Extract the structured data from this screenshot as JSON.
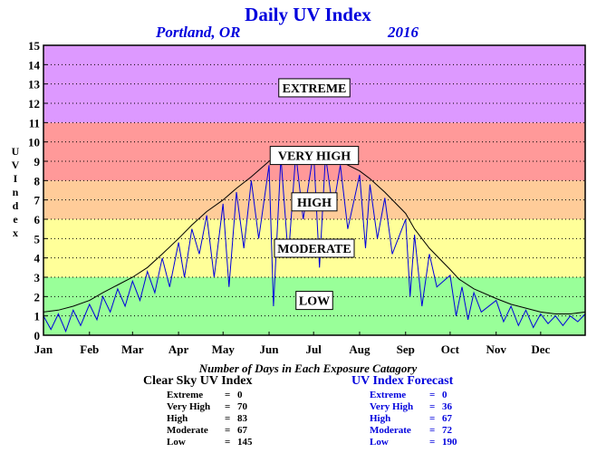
{
  "header": {
    "title": "Daily UV Index",
    "location": "Portland, OR",
    "year": "2016"
  },
  "y_axis_label_chars": [
    "U",
    "V",
    " ",
    "I",
    "n",
    "d",
    "e",
    "x"
  ],
  "summary": {
    "heading": "Number of Days in Each Exposure Catagory",
    "clear_sky": {
      "title": "Clear Sky UV Index",
      "color": "#000000",
      "rows": [
        {
          "label": "Extreme",
          "sep": "=",
          "value": "0"
        },
        {
          "label": "Very High",
          "sep": "=",
          "value": "70"
        },
        {
          "label": "High",
          "sep": "=",
          "value": "83"
        },
        {
          "label": "Moderate",
          "sep": "=",
          "value": "67"
        },
        {
          "label": "Low",
          "sep": "=",
          "value": "145"
        }
      ]
    },
    "forecast": {
      "title": "UV Index Forecast",
      "color": "#0000dd",
      "rows": [
        {
          "label": "Extreme",
          "sep": "=",
          "value": "0"
        },
        {
          "label": "Very High",
          "sep": "=",
          "value": "36"
        },
        {
          "label": "High",
          "sep": "=",
          "value": "67"
        },
        {
          "label": "Moderate",
          "sep": "=",
          "value": "72"
        },
        {
          "label": "Low",
          "sep": "=",
          "value": "190"
        }
      ]
    }
  },
  "chart_data": {
    "type": "line",
    "title": "Daily UV Index",
    "ylabel": "UV Index",
    "ylim": [
      0,
      15
    ],
    "yticks": [
      0,
      1,
      2,
      3,
      4,
      5,
      6,
      7,
      8,
      9,
      10,
      11,
      12,
      13,
      14,
      15
    ],
    "xlim": [
      0,
      365
    ],
    "months": [
      "Jan",
      "Feb",
      "Mar",
      "Apr",
      "May",
      "Jun",
      "Jul",
      "Aug",
      "Sep",
      "Oct",
      "Nov",
      "Dec"
    ],
    "month_start_days": [
      0,
      31,
      60,
      91,
      121,
      152,
      182,
      213,
      244,
      274,
      305,
      335
    ],
    "grid": true,
    "bands": [
      {
        "label": "LOW",
        "from": 0,
        "to": 3,
        "color": "#99ff99",
        "label_y": 1.8
      },
      {
        "label": "MODERATE",
        "from": 3,
        "to": 6,
        "color": "#ffff99",
        "label_y": 4.5
      },
      {
        "label": "HIGH",
        "from": 6,
        "to": 8,
        "color": "#ffcc99",
        "label_y": 6.9
      },
      {
        "label": "VERY HIGH",
        "from": 8,
        "to": 11,
        "color": "#ff9999",
        "label_y": 9.3
      },
      {
        "label": "EXTREME",
        "from": 11,
        "to": 15,
        "color": "#dd99ff",
        "label_y": 12.8
      }
    ],
    "series": [
      {
        "name": "Clear Sky UV Index",
        "color": "#000000",
        "x": [
          0,
          10,
          20,
          31,
          40,
          50,
          60,
          70,
          80,
          91,
          100,
          110,
          121,
          130,
          140,
          152,
          160,
          170,
          182,
          190,
          200,
          213,
          220,
          230,
          244,
          250,
          260,
          274,
          280,
          290,
          305,
          315,
          325,
          335,
          345,
          355,
          365
        ],
        "values": [
          1.2,
          1.3,
          1.5,
          1.8,
          2.2,
          2.6,
          3.0,
          3.5,
          4.2,
          5.0,
          5.7,
          6.4,
          7.0,
          7.6,
          8.2,
          9.0,
          9.4,
          9.6,
          9.6,
          9.4,
          9.0,
          8.5,
          8.1,
          7.4,
          6.3,
          5.5,
          4.5,
          3.4,
          2.9,
          2.4,
          1.9,
          1.6,
          1.4,
          1.2,
          1.1,
          1.1,
          1.2
        ]
      },
      {
        "name": "UV Index Forecast",
        "color": "#0000dd",
        "x": [
          0,
          5,
          10,
          15,
          20,
          25,
          31,
          36,
          40,
          45,
          50,
          55,
          60,
          65,
          70,
          75,
          80,
          85,
          91,
          95,
          100,
          105,
          110,
          115,
          121,
          125,
          130,
          135,
          140,
          145,
          152,
          155,
          160,
          165,
          170,
          175,
          182,
          186,
          190,
          195,
          200,
          205,
          213,
          217,
          220,
          225,
          230,
          235,
          244,
          247,
          250,
          255,
          260,
          265,
          274,
          278,
          282,
          286,
          290,
          295,
          305,
          310,
          315,
          320,
          325,
          330,
          335,
          340,
          345,
          350,
          355,
          360,
          365
        ],
        "values": [
          1.0,
          0.3,
          1.1,
          0.2,
          1.3,
          0.5,
          1.6,
          0.8,
          2.0,
          1.2,
          2.4,
          1.5,
          2.8,
          1.8,
          3.3,
          2.2,
          4.0,
          2.5,
          4.8,
          3.0,
          5.5,
          4.2,
          6.2,
          3.0,
          6.8,
          2.5,
          7.4,
          4.5,
          8.0,
          5.0,
          8.8,
          1.5,
          9.2,
          4.0,
          9.4,
          6.0,
          9.5,
          3.5,
          9.3,
          6.5,
          8.8,
          5.5,
          8.3,
          4.5,
          7.8,
          5.0,
          7.1,
          4.2,
          6.0,
          2.0,
          5.2,
          1.5,
          4.2,
          2.5,
          3.1,
          1.0,
          2.5,
          0.8,
          2.2,
          1.2,
          1.8,
          0.7,
          1.5,
          0.5,
          1.3,
          0.4,
          1.1,
          0.6,
          1.0,
          0.5,
          1.0,
          0.7,
          1.1
        ]
      }
    ]
  }
}
